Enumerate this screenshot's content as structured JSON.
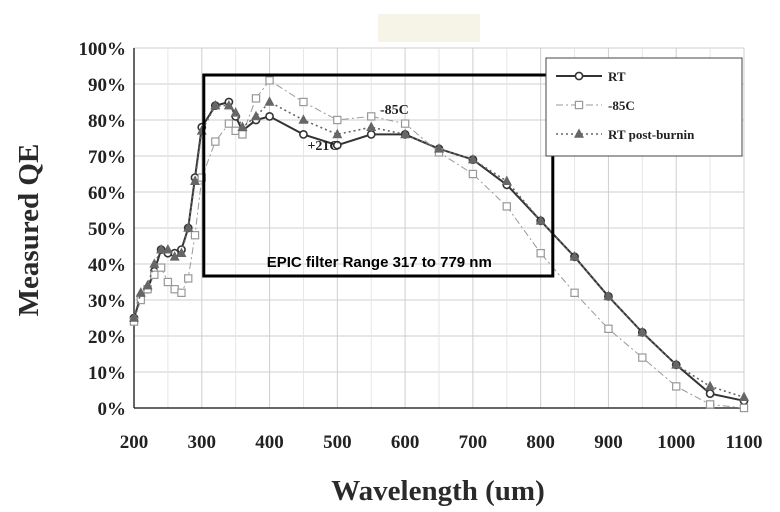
{
  "chart_data": {
    "type": "line",
    "title": "",
    "xlabel": "Wavelength (um)",
    "ylabel": "Measured QE",
    "xlim": [
      200,
      1100
    ],
    "ylim": [
      0,
      100
    ],
    "x_ticks": [
      200,
      300,
      400,
      500,
      600,
      700,
      800,
      900,
      1000,
      1100
    ],
    "y_ticks": [
      0,
      10,
      20,
      30,
      40,
      50,
      60,
      70,
      80,
      90,
      100
    ],
    "y_tick_suffix": "%",
    "grid": true,
    "legend_position": "top-right",
    "series": [
      {
        "name": "RT",
        "marker": "circle",
        "line_style": "solid",
        "color": "#333333",
        "points": [
          [
            200,
            25
          ],
          [
            210,
            31
          ],
          [
            220,
            33
          ],
          [
            230,
            38
          ],
          [
            240,
            44
          ],
          [
            250,
            43
          ],
          [
            260,
            43
          ],
          [
            270,
            44
          ],
          [
            280,
            50
          ],
          [
            290,
            64
          ],
          [
            300,
            78
          ],
          [
            320,
            84
          ],
          [
            340,
            85
          ],
          [
            350,
            81
          ],
          [
            360,
            77
          ],
          [
            380,
            80
          ],
          [
            400,
            81
          ],
          [
            450,
            76
          ],
          [
            500,
            73
          ],
          [
            550,
            76
          ],
          [
            600,
            76
          ],
          [
            650,
            72
          ],
          [
            700,
            69
          ],
          [
            750,
            62
          ],
          [
            800,
            52
          ],
          [
            850,
            42
          ],
          [
            900,
            31
          ],
          [
            950,
            21
          ],
          [
            1000,
            12
          ],
          [
            1050,
            4
          ],
          [
            1100,
            2
          ]
        ]
      },
      {
        "name": "-85C",
        "marker": "square",
        "line_style": "dashdot",
        "color": "#999999",
        "points": [
          [
            200,
            24
          ],
          [
            210,
            30
          ],
          [
            220,
            33
          ],
          [
            230,
            37
          ],
          [
            240,
            39
          ],
          [
            250,
            35
          ],
          [
            260,
            33
          ],
          [
            270,
            32
          ],
          [
            280,
            36
          ],
          [
            290,
            48
          ],
          [
            300,
            64
          ],
          [
            320,
            74
          ],
          [
            340,
            79
          ],
          [
            350,
            77
          ],
          [
            360,
            76
          ],
          [
            380,
            86
          ],
          [
            400,
            91
          ],
          [
            450,
            85
          ],
          [
            500,
            80
          ],
          [
            550,
            81
          ],
          [
            600,
            79
          ],
          [
            650,
            71
          ],
          [
            700,
            65
          ],
          [
            750,
            56
          ],
          [
            800,
            43
          ],
          [
            850,
            32
          ],
          [
            900,
            22
          ],
          [
            950,
            14
          ],
          [
            1000,
            6
          ],
          [
            1050,
            1
          ],
          [
            1100,
            0
          ]
        ]
      },
      {
        "name": "RT post-burnin",
        "marker": "triangle",
        "line_style": "dotted",
        "color": "#666666",
        "points": [
          [
            200,
            25
          ],
          [
            210,
            32
          ],
          [
            220,
            34
          ],
          [
            230,
            40
          ],
          [
            240,
            44
          ],
          [
            250,
            44
          ],
          [
            260,
            42
          ],
          [
            270,
            43
          ],
          [
            280,
            50
          ],
          [
            290,
            63
          ],
          [
            300,
            77
          ],
          [
            320,
            84
          ],
          [
            340,
            84
          ],
          [
            350,
            82
          ],
          [
            360,
            78
          ],
          [
            380,
            81
          ],
          [
            400,
            85
          ],
          [
            450,
            80
          ],
          [
            500,
            76
          ],
          [
            550,
            78
          ],
          [
            600,
            76
          ],
          [
            650,
            72
          ],
          [
            700,
            69
          ],
          [
            750,
            63
          ],
          [
            800,
            52
          ],
          [
            850,
            42
          ],
          [
            900,
            31
          ],
          [
            950,
            21
          ],
          [
            1000,
            12
          ],
          [
            1050,
            6
          ],
          [
            1100,
            3
          ]
        ]
      }
    ],
    "annotations": [
      {
        "text": "+21C",
        "x": 450,
        "y": 73
      },
      {
        "text": "-85C",
        "x": 557,
        "y": 83
      }
    ],
    "highlight_box": {
      "label": "EPIC filter Range 317 to 779 nm",
      "x_range": [
        300,
        812
      ],
      "y_range": [
        40,
        100
      ]
    }
  }
}
